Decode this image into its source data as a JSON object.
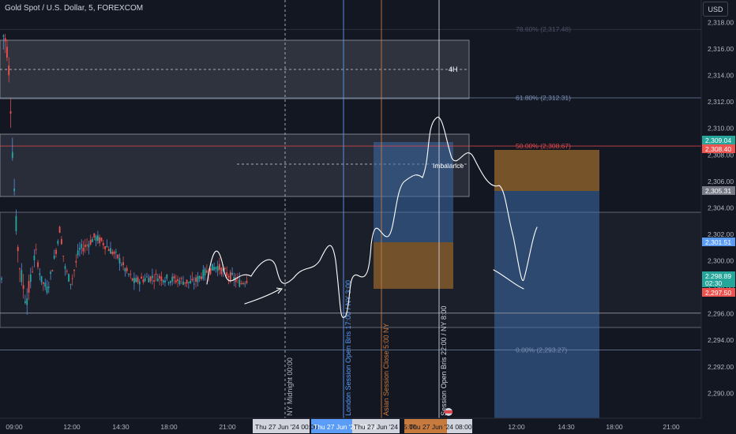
{
  "header": {
    "symbol": "Gold Spot / U.S. Dollar, 5, FOREXCOM",
    "currency": "USD"
  },
  "colors": {
    "bg": "#131722",
    "up": "#26a69a",
    "down": "#ef5350",
    "wick_up": "#5b9cf6",
    "london": "#5b9cf6",
    "asian": "#c77a3e",
    "fib": "#7b8fb5",
    "fib50": "#e0474c",
    "blue_zone": "#3d6ba8",
    "orange_zone": "#8a5e2c"
  },
  "chart_data": {
    "type": "candlestick",
    "title": "Gold Spot / U.S. Dollar, 5, FOREXCOM",
    "ylim": [
      2288.5,
      2319
    ],
    "y_ticks": [
      "2,318.00",
      "2,316.00",
      "2,314.00",
      "2,312.00",
      "2,310.00",
      "2,308.00",
      "2,306.00",
      "2,304.00",
      "2,302.00",
      "2,300.00",
      "2,298.00",
      "2,296.00",
      "2,294.00",
      "2,292.00",
      "2,290.00"
    ],
    "x_ticks": [
      "09:00",
      "12:00",
      "14:30",
      "18:00",
      "21:00",
      "12:00",
      "14:30",
      "18:00",
      "21:00"
    ],
    "fib_levels": [
      {
        "label": "78.60% (2,317.48)",
        "price": 2317.48
      },
      {
        "label": "61.80% (2,312.31)",
        "price": 2312.31
      },
      {
        "label": "50.00% (2,308.67)",
        "price": 2308.67
      },
      {
        "label": "0.00% (2,293.27)",
        "price": 2293.27
      }
    ],
    "price_labels": [
      {
        "text": "2,309.04",
        "color": "#26a69a"
      },
      {
        "text": "2,308.40",
        "color": "#ef5350"
      },
      {
        "text": "2,305.31",
        "color": "#787b86"
      },
      {
        "text": "2,301.51",
        "color": "#5b9cf6"
      },
      {
        "text": "2,298.89",
        "color": "#26a69a"
      },
      {
        "text": "02:30",
        "color": "#26a69a"
      },
      {
        "text": "2,297.50",
        "color": "#ef5350"
      }
    ],
    "session_lines": [
      {
        "text": "NY Midnight 00:00",
        "kind": "midnight"
      },
      {
        "text": "London Session Open Bris 17:00 / NY 3:00",
        "kind": "london"
      },
      {
        "text": "Asian Session Close 5:00 NY",
        "kind": "asian"
      },
      {
        "text": "Session Open Bris 22:00 / NY 8:00",
        "kind": "session"
      }
    ],
    "annotations": [
      "4H",
      "Imbalance"
    ],
    "time_labels": [
      "Thu 27 Jun '24",
      "00:00",
      "Thu 27 Jun '24",
      "03:00",
      "Thu 27 Jun '24",
      "05:00",
      "Thu 27 Jun '24",
      "08:00"
    ]
  }
}
